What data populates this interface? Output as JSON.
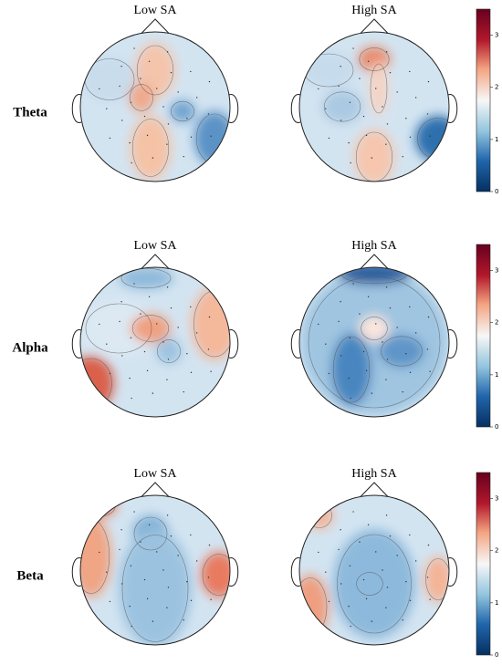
{
  "rows": [
    {
      "label": "Theta",
      "maps": [
        "Low SA",
        "High SA"
      ]
    },
    {
      "label": "Alpha",
      "maps": [
        "Low SA",
        "High SA"
      ]
    },
    {
      "label": "Beta",
      "maps": [
        "Low SA",
        "High SA"
      ]
    }
  ],
  "colorbar": {
    "lim": [
      0,
      3.5
    ],
    "ticks": [
      0,
      1,
      2,
      3
    ]
  }
}
